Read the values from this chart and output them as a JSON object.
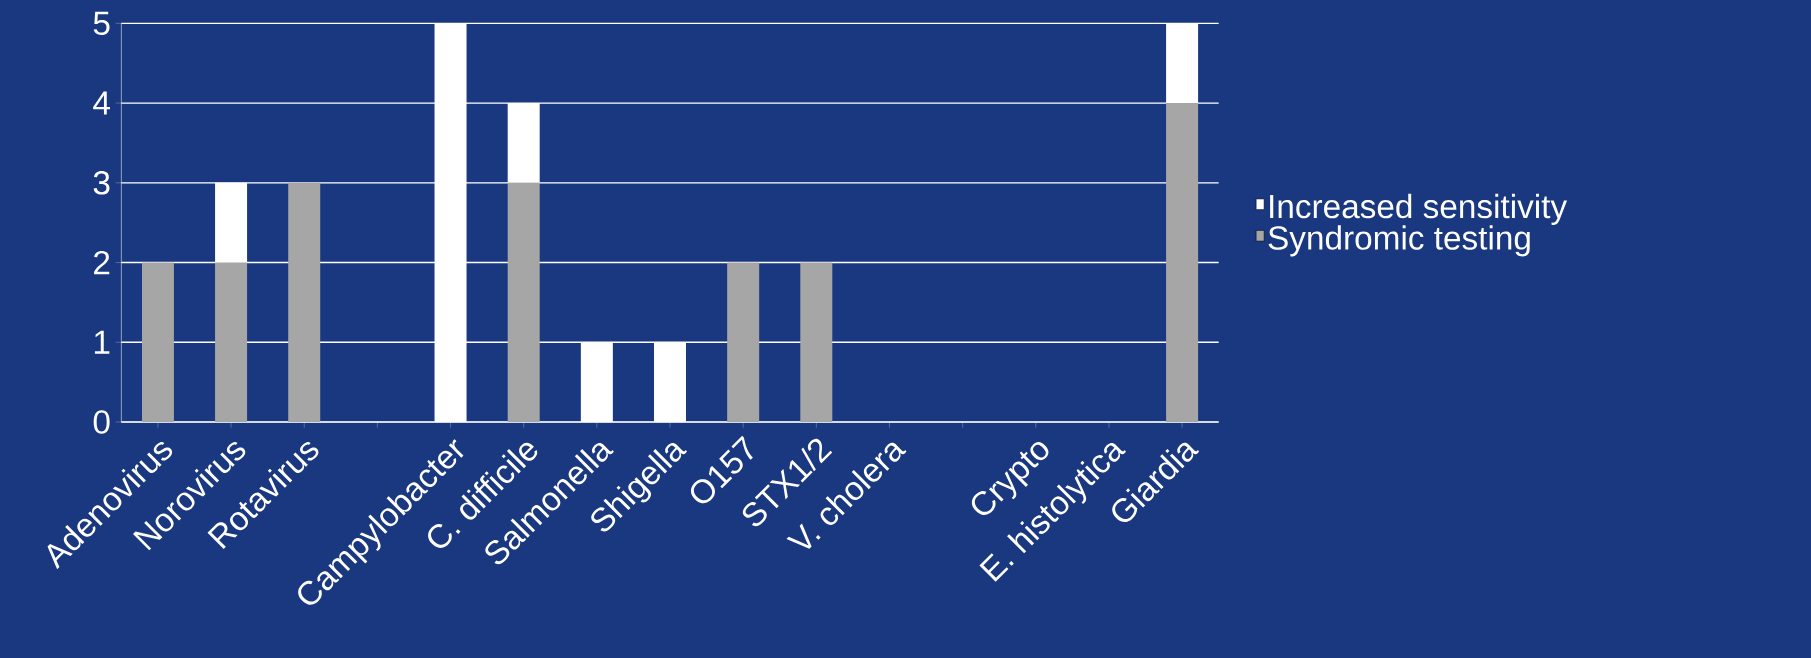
{
  "chart_data": {
    "type": "bar",
    "stacked": true,
    "categories": [
      "Adenovirus",
      "Norovirus",
      "Rotavirus",
      null,
      "Campylobacter",
      "C. difficile",
      "Salmonella",
      "Shigella",
      "O157",
      "STX1/2",
      "V. cholera",
      null,
      "Crypto",
      "E. histolytica",
      "Giardia"
    ],
    "series": [
      {
        "name": "Syndromic testing",
        "color": "#a6a6a6",
        "values": [
          2,
          2,
          3,
          0,
          0,
          3,
          0,
          0,
          2,
          2,
          0,
          0,
          0,
          0,
          4
        ]
      },
      {
        "name": "Increased sensitivity",
        "color": "#ffffff",
        "values": [
          0,
          1,
          0,
          0,
          5,
          1,
          1,
          1,
          0,
          0,
          0,
          0,
          0,
          0,
          1
        ]
      }
    ],
    "ylim": [
      0,
      5
    ],
    "yticks": [
      0,
      1,
      2,
      3,
      4,
      5
    ],
    "grid": "y",
    "legend": "right"
  }
}
